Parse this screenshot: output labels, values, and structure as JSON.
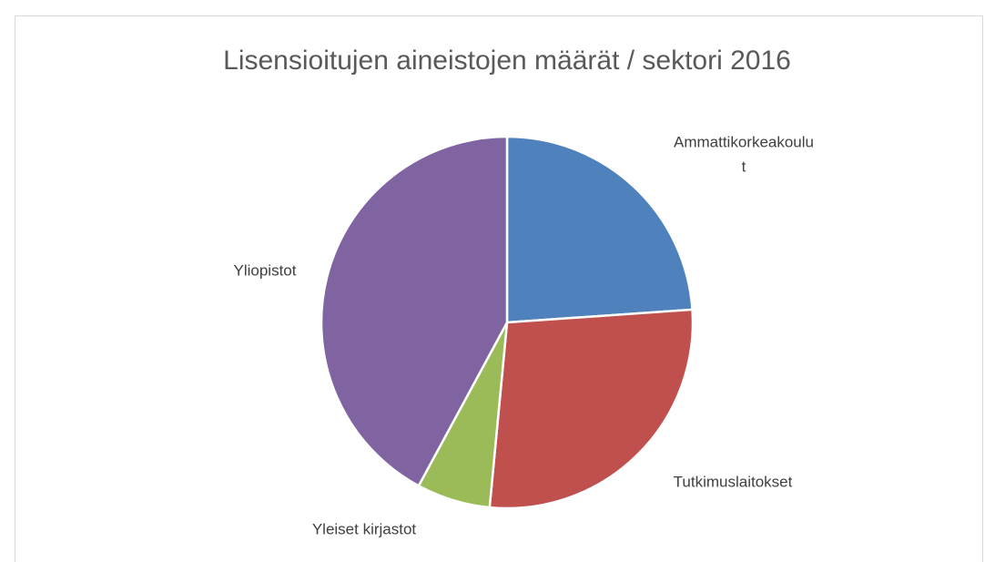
{
  "chart_data": {
    "type": "pie",
    "title": "Lisensioitujen aineistojen määrät / sektori 2016",
    "categories": [
      "Ammattikorkeakoulut",
      "Tutkimuslaitokset",
      "Yleiset kirjastot",
      "Yliopistot"
    ],
    "values": [
      23.9,
      27.6,
      6.4,
      42.1
    ],
    "colors": [
      "#4f81bd",
      "#c0504d",
      "#9bbb59",
      "#8064a2"
    ]
  }
}
